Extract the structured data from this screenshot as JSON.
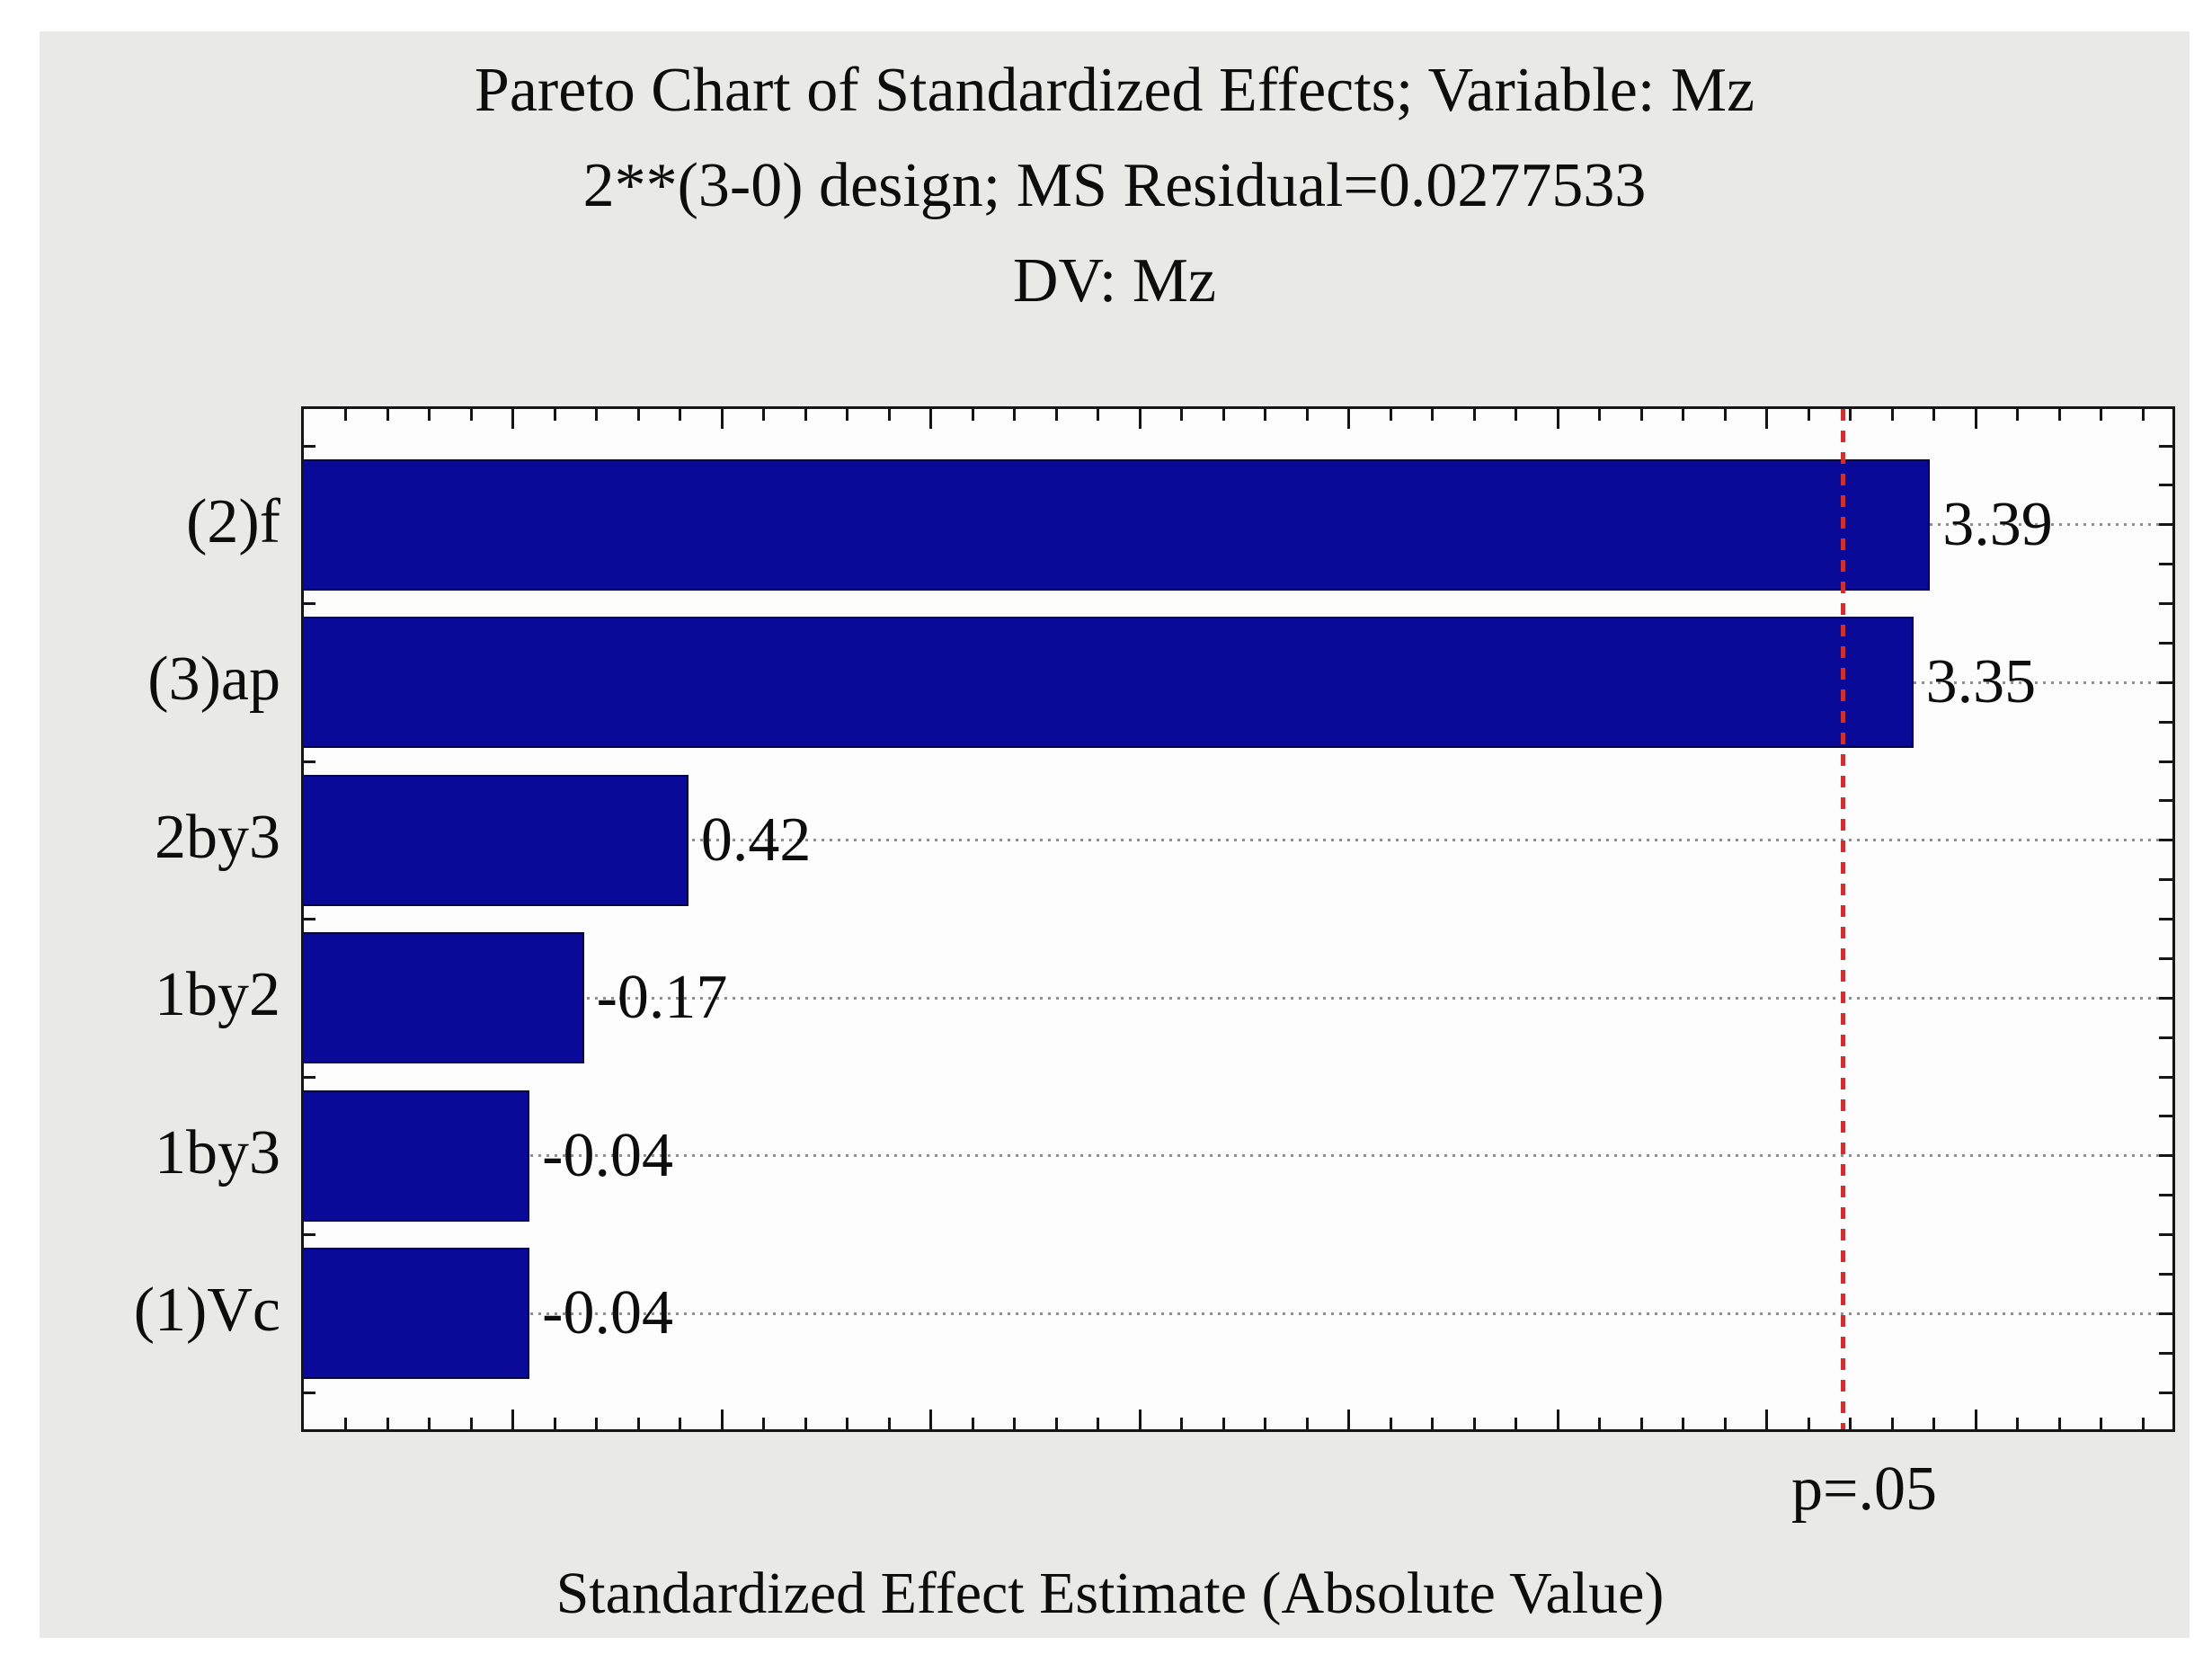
{
  "chart_data": {
    "type": "bar",
    "orientation": "horizontal",
    "title": "Pareto Chart of Standardized Effects; Variable: Mz",
    "subtitle": "2**(3-0) design; MS Residual=0.0277533",
    "subtitle2": "DV: Mz",
    "xlabel": "Standardized Effect Estimate (Absolute Value)",
    "categories": [
      "(2)f",
      "(3)ap",
      "2by3",
      "1by2",
      "1by3",
      "(1)Vc"
    ],
    "values": [
      3.39,
      3.35,
      0.42,
      -0.17,
      -0.04,
      -0.04
    ],
    "value_labels": [
      "3.39",
      "3.35",
      "0.42",
      "-0.17",
      "-0.04",
      "-0.04"
    ],
    "xlim": [
      -0.5,
      3.97
    ],
    "minor_tick_step": 0.1,
    "major_tick_step": 0.5,
    "grid": "horizontal dotted lines at category centers",
    "legend": "none",
    "significance_line": {
      "value": 3.182,
      "label": "p=.05",
      "color": "#d02f2f"
    },
    "bar_color": "#0a0a99",
    "bar_border_color": "#03034d",
    "panel_background": "#e9e9e8",
    "plot_background": "#fdfdfd"
  }
}
